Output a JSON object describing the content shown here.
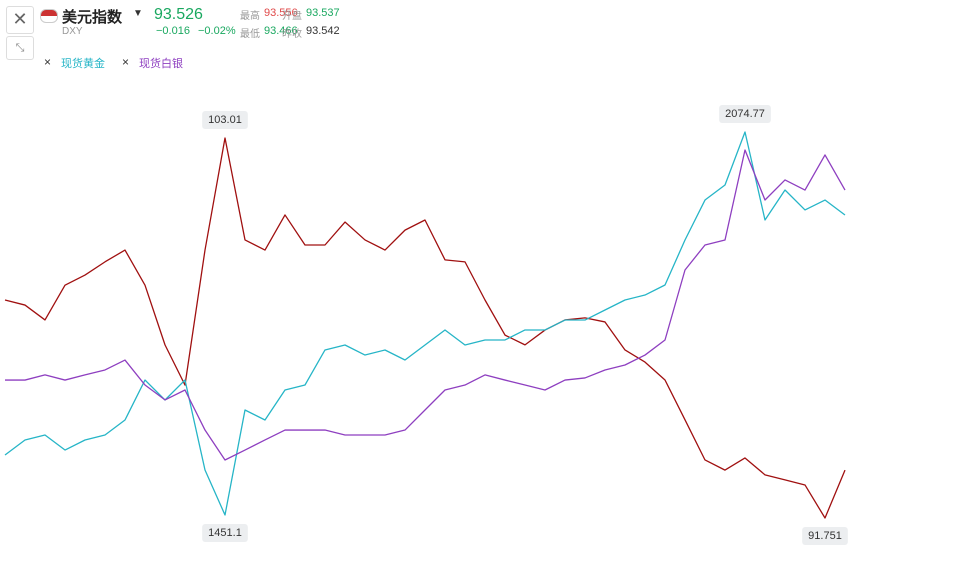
{
  "header": {
    "name": "美元指数",
    "code": "DXY",
    "price": "93.526",
    "change": "−0.016",
    "change_pct": "−0.02%",
    "stats": [
      {
        "label": "最高",
        "value": "93.556"
      },
      {
        "label": "开盘",
        "value": "93.537"
      },
      {
        "label": "最低",
        "value": "93.466"
      },
      {
        "label": "昨收",
        "value": "93.542"
      }
    ]
  },
  "chart_data": {
    "type": "line",
    "series": [
      {
        "color": "#a01010",
        "label_extremes": true,
        "values": [
          98.21,
          98.06,
          97.62,
          98.65,
          98.95,
          99.34,
          99.69,
          98.65,
          96.88,
          95.69,
          99.69,
          103.01,
          99.99,
          99.69,
          100.73,
          99.84,
          99.84,
          100.52,
          99.99,
          99.69,
          100.28,
          100.58,
          99.4,
          99.34,
          98.21,
          97.17,
          96.88,
          97.32,
          97.62,
          97.68,
          97.56,
          96.73,
          96.37,
          95.84,
          94.66,
          93.47,
          93.17,
          93.53,
          93.03,
          92.88,
          92.73,
          91.751,
          93.17
        ]
      },
      {
        "name": "现货黄金",
        "color": "#26b5c7",
        "label_extremes": true,
        "values": [
          1548.8,
          1573.2,
          1581.4,
          1556.9,
          1573.2,
          1581.4,
          1605.8,
          1670.9,
          1638.4,
          1670.9,
          1524.4,
          1451.1,
          1622.1,
          1605.8,
          1654.7,
          1662.8,
          1719.8,
          1727.9,
          1711.6,
          1719.8,
          1703.5,
          1727.9,
          1752.4,
          1727.9,
          1736.1,
          1736.1,
          1752.4,
          1752.4,
          1768.6,
          1768.6,
          1784.9,
          1801.2,
          1809.3,
          1825.6,
          1898.9,
          1964.0,
          1988.5,
          2074.77,
          1931.5,
          1980.3,
          1947.8,
          1964.0,
          1939.6
        ]
      },
      {
        "name": "现货白银",
        "color": "#8e3fc0",
        "label_extremes": false,
        "values": [
          16.28,
          16.28,
          16.57,
          16.28,
          16.57,
          16.85,
          17.41,
          16.0,
          15.16,
          15.72,
          13.46,
          11.77,
          12.33,
          12.9,
          13.46,
          13.46,
          13.46,
          13.18,
          13.18,
          13.18,
          13.46,
          14.59,
          15.72,
          16.0,
          16.57,
          16.28,
          16.0,
          15.72,
          16.28,
          16.4,
          16.85,
          17.13,
          17.69,
          18.54,
          22.49,
          23.9,
          24.18,
          29.26,
          26.44,
          27.57,
          27.0,
          28.98,
          27.0
        ]
      }
    ]
  }
}
